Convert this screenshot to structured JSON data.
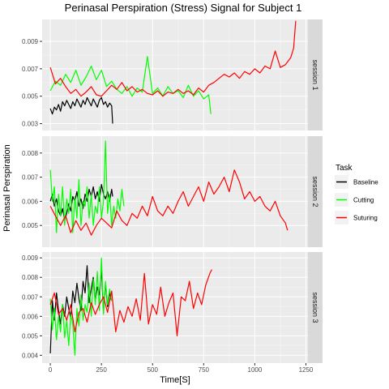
{
  "chart_data": {
    "type": "line",
    "title": "Perinasal Perspiration (Stress) Signal for Subject  1",
    "xlabel": "Time[S]",
    "ylabel": "Perinasal Perspiration",
    "xlim": [
      -40,
      1260
    ],
    "x_ticks": [
      0,
      250,
      500,
      750,
      1000,
      1250
    ],
    "x_tick_labels": [
      "0",
      "250",
      "500",
      "750",
      "1000",
      "1250"
    ],
    "grid": true,
    "legend": {
      "title": "Task",
      "position": "right",
      "entries": [
        {
          "label": "Baseline",
          "color": "#000000"
        },
        {
          "label": "Cutting",
          "color": "#00ff00"
        },
        {
          "label": "Suturing",
          "color": "#ff0000"
        }
      ]
    },
    "facets": [
      {
        "label": "session 1",
        "ylim": [
          0.0025,
          0.0106
        ],
        "y_ticks": [
          0.003,
          0.005,
          0.007,
          0.009
        ],
        "y_tick_labels": [
          "0.003",
          "0.005",
          "0.007",
          "0.009"
        ],
        "series": [
          {
            "name": "Baseline",
            "x": [
              0,
              10,
              20,
              30,
              40,
              50,
              60,
              70,
              80,
              90,
              100,
              110,
              120,
              130,
              140,
              150,
              160,
              170,
              180,
              190,
              200,
              210,
              220,
              230,
              240,
              250,
              260,
              270,
              280,
              290,
              300,
              305
            ],
            "y": [
              0.0041,
              0.0037,
              0.0042,
              0.004,
              0.0044,
              0.0039,
              0.0046,
              0.0043,
              0.0047,
              0.0044,
              0.0041,
              0.0046,
              0.0043,
              0.0048,
              0.0045,
              0.0042,
              0.0047,
              0.0044,
              0.0049,
              0.0046,
              0.0043,
              0.0048,
              0.0045,
              0.0042,
              0.0047,
              0.0049,
              0.0044,
              0.0046,
              0.0042,
              0.0045,
              0.0043,
              0.003
            ]
          },
          {
            "name": "Cutting",
            "x": [
              0,
              25,
              50,
              75,
              100,
              125,
              150,
              175,
              200,
              225,
              250,
              275,
              300,
              325,
              350,
              375,
              400,
              425,
              450,
              475,
              500,
              525,
              550,
              575,
              600,
              625,
              650,
              675,
              700,
              725,
              750,
              775,
              785
            ],
            "y": [
              0.0054,
              0.0061,
              0.0058,
              0.0066,
              0.006,
              0.0069,
              0.0058,
              0.0064,
              0.0072,
              0.0062,
              0.0069,
              0.0057,
              0.0061,
              0.0055,
              0.0052,
              0.0057,
              0.005,
              0.0056,
              0.0053,
              0.0079,
              0.0052,
              0.0056,
              0.005,
              0.0057,
              0.0052,
              0.0054,
              0.0049,
              0.0058,
              0.005,
              0.0054,
              0.0048,
              0.0051,
              0.0037
            ]
          },
          {
            "name": "Suturing",
            "x": [
              0,
              25,
              50,
              75,
              100,
              125,
              150,
              175,
              200,
              225,
              250,
              275,
              300,
              325,
              350,
              375,
              400,
              425,
              450,
              475,
              500,
              525,
              550,
              575,
              600,
              625,
              650,
              675,
              700,
              725,
              750,
              775,
              800,
              825,
              850,
              875,
              900,
              925,
              950,
              975,
              1000,
              1025,
              1050,
              1075,
              1100,
              1125,
              1150,
              1175,
              1190,
              1200
            ],
            "y": [
              0.0071,
              0.0059,
              0.0063,
              0.0057,
              0.0052,
              0.0055,
              0.005,
              0.0053,
              0.0057,
              0.0051,
              0.005,
              0.0054,
              0.0058,
              0.0055,
              0.006,
              0.0054,
              0.0057,
              0.0053,
              0.0055,
              0.0052,
              0.0051,
              0.0054,
              0.005,
              0.0053,
              0.0052,
              0.0055,
              0.0052,
              0.0054,
              0.0051,
              0.0056,
              0.0053,
              0.0058,
              0.006,
              0.0063,
              0.0066,
              0.0064,
              0.0067,
              0.0063,
              0.0068,
              0.0066,
              0.007,
              0.0067,
              0.0072,
              0.007,
              0.0083,
              0.0071,
              0.0073,
              0.0078,
              0.0085,
              0.0105
            ]
          }
        ]
      },
      {
        "label": "session 2",
        "ylim": [
          0.0041,
          0.0087
        ],
        "y_ticks": [
          0.005,
          0.006,
          0.007,
          0.008
        ],
        "y_tick_labels": [
          "0.005",
          "0.006",
          "0.007",
          "0.008"
        ],
        "series": [
          {
            "name": "Baseline",
            "x": [
              0,
              10,
              20,
              30,
              40,
              50,
              60,
              70,
              80,
              90,
              100,
              110,
              120,
              130,
              140,
              150,
              160,
              170,
              180,
              190,
              200,
              210,
              220,
              230,
              240,
              250,
              260,
              270,
              280,
              290,
              300,
              305
            ],
            "y": [
              0.006,
              0.0063,
              0.0058,
              0.0061,
              0.0056,
              0.0054,
              0.0057,
              0.0052,
              0.0055,
              0.0059,
              0.0056,
              0.0062,
              0.006,
              0.0064,
              0.0058,
              0.0061,
              0.0057,
              0.0063,
              0.006,
              0.0065,
              0.0062,
              0.0066,
              0.0061,
              0.0064,
              0.006,
              0.0067,
              0.0063,
              0.0061,
              0.0064,
              0.006,
              0.0065,
              0.0062
            ]
          },
          {
            "name": "Cutting",
            "x": [
              0,
              10,
              20,
              30,
              40,
              50,
              60,
              70,
              80,
              90,
              100,
              110,
              120,
              130,
              140,
              150,
              160,
              170,
              180,
              190,
              200,
              210,
              220,
              230,
              240,
              250,
              260,
              270,
              280,
              290,
              300,
              310,
              320,
              330,
              340,
              350,
              360
            ],
            "y": [
              0.0073,
              0.006,
              0.0066,
              0.0047,
              0.0063,
              0.0054,
              0.0066,
              0.005,
              0.0061,
              0.0055,
              0.0065,
              0.0047,
              0.0062,
              0.0053,
              0.0069,
              0.005,
              0.006,
              0.0058,
              0.0066,
              0.0053,
              0.0063,
              0.005,
              0.0058,
              0.0055,
              0.0066,
              0.0053,
              0.006,
              0.0085,
              0.0055,
              0.0063,
              0.005,
              0.0058,
              0.0053,
              0.0061,
              0.0056,
              0.0065,
              0.0058
            ]
          },
          {
            "name": "Suturing",
            "x": [
              0,
              25,
              50,
              75,
              100,
              125,
              150,
              175,
              200,
              225,
              250,
              275,
              300,
              325,
              350,
              375,
              400,
              425,
              450,
              475,
              500,
              525,
              550,
              575,
              600,
              625,
              650,
              675,
              700,
              725,
              750,
              775,
              800,
              825,
              850,
              875,
              900,
              925,
              950,
              975,
              1000,
              1025,
              1050,
              1075,
              1100,
              1125,
              1150,
              1160
            ],
            "y": [
              0.0058,
              0.0054,
              0.005,
              0.0054,
              0.0047,
              0.0052,
              0.0048,
              0.0051,
              0.0046,
              0.005,
              0.0053,
              0.0051,
              0.0049,
              0.0056,
              0.0052,
              0.005,
              0.0055,
              0.0053,
              0.0058,
              0.0054,
              0.0062,
              0.0056,
              0.0054,
              0.0058,
              0.0055,
              0.006,
              0.0064,
              0.0058,
              0.0062,
              0.0066,
              0.006,
              0.0068,
              0.0063,
              0.0066,
              0.007,
              0.0064,
              0.0073,
              0.0068,
              0.0061,
              0.0064,
              0.006,
              0.0062,
              0.0058,
              0.0056,
              0.006,
              0.0054,
              0.0051,
              0.0048
            ]
          }
        ]
      },
      {
        "label": "session 3",
        "ylim": [
          0.0036,
          0.0093
        ],
        "y_ticks": [
          0.004,
          0.005,
          0.006,
          0.007,
          0.008,
          0.009
        ],
        "y_tick_labels": [
          "0.004",
          "0.005",
          "0.006",
          "0.007",
          "0.008",
          "0.009"
        ],
        "series": [
          {
            "name": "Baseline",
            "x": [
              0,
              10,
              20,
              30,
              40,
              50,
              60,
              70,
              80,
              90,
              100,
              110,
              120,
              130,
              140,
              150,
              160,
              170,
              180,
              190,
              200,
              210,
              220,
              230,
              240,
              250,
              260,
              270,
              280,
              290,
              300
            ],
            "y": [
              0.0041,
              0.0068,
              0.0058,
              0.0072,
              0.0063,
              0.0056,
              0.0066,
              0.006,
              0.007,
              0.0064,
              0.0059,
              0.0073,
              0.0067,
              0.0077,
              0.0069,
              0.0063,
              0.0078,
              0.0072,
              0.0086,
              0.0067,
              0.0074,
              0.008,
              0.0068,
              0.0075,
              0.0071,
              0.0084,
              0.0062,
              0.0077,
              0.0065,
              0.0072,
              0.0068
            ]
          },
          {
            "name": "Cutting",
            "x": [
              0,
              10,
              20,
              30,
              40,
              50,
              60,
              70,
              80,
              90,
              100,
              110,
              120,
              130,
              140,
              150,
              160,
              170,
              180,
              190,
              200,
              210,
              220,
              230,
              240,
              250,
              260,
              270,
              280,
              290,
              300
            ],
            "y": [
              0.0069,
              0.0053,
              0.0064,
              0.0048,
              0.006,
              0.0052,
              0.0066,
              0.0049,
              0.0058,
              0.0045,
              0.0061,
              0.0056,
              0.004,
              0.0064,
              0.0055,
              0.0071,
              0.0058,
              0.0066,
              0.0062,
              0.0077,
              0.006,
              0.0079,
              0.0066,
              0.0083,
              0.0063,
              0.009,
              0.0061,
              0.0078,
              0.0066,
              0.0074,
              0.0068
            ]
          },
          {
            "name": "Suturing",
            "x": [
              0,
              20,
              40,
              60,
              80,
              100,
              120,
              140,
              160,
              180,
              200,
              220,
              240,
              260,
              280,
              300,
              320,
              340,
              360,
              380,
              400,
              420,
              440,
              460,
              480,
              500,
              520,
              540,
              560,
              580,
              600,
              620,
              640,
              660,
              680,
              700,
              720,
              740,
              760,
              780,
              790
            ],
            "y": [
              0.0066,
              0.0072,
              0.0061,
              0.0064,
              0.0058,
              0.0066,
              0.0052,
              0.0062,
              0.0064,
              0.0057,
              0.0067,
              0.0061,
              0.0066,
              0.007,
              0.0062,
              0.0073,
              0.0052,
              0.0063,
              0.0057,
              0.0065,
              0.006,
              0.0069,
              0.0058,
              0.0082,
              0.0056,
              0.0066,
              0.0061,
              0.0075,
              0.006,
              0.0067,
              0.0072,
              0.005,
              0.007,
              0.0068,
              0.0078,
              0.0064,
              0.0072,
              0.0066,
              0.0076,
              0.0082,
              0.0084
            ]
          }
        ]
      }
    ]
  }
}
